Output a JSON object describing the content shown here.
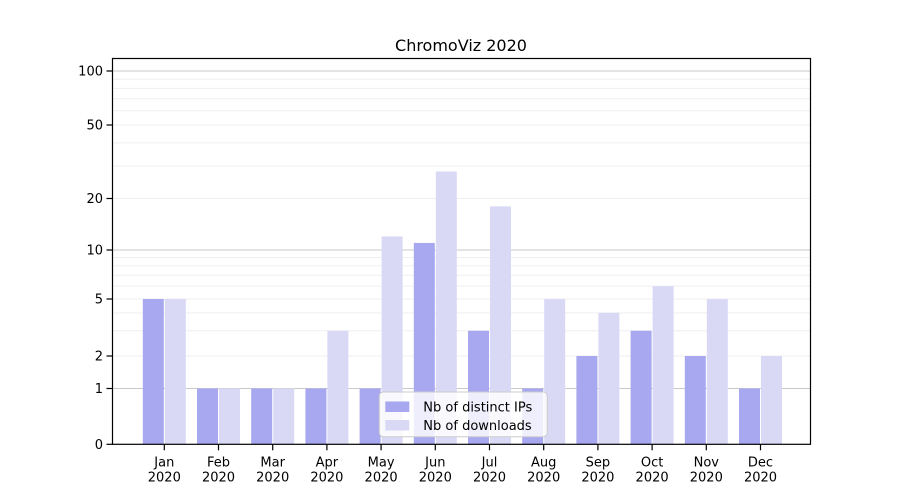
{
  "chart_data": {
    "type": "bar",
    "title": "ChromoViz 2020",
    "xlabel": "",
    "ylabel": "",
    "categories": [
      "Jan 2020",
      "Feb 2020",
      "Mar 2020",
      "Apr 2020",
      "May 2020",
      "Jun 2020",
      "Jul 2020",
      "Aug 2020",
      "Sep 2020",
      "Oct 2020",
      "Nov 2020",
      "Dec 2020"
    ],
    "series": [
      {
        "name": "Nb of distinct IPs",
        "color": "#a8a8f0",
        "values": [
          5,
          1,
          1,
          1,
          1,
          11,
          3,
          1,
          2,
          3,
          2,
          1
        ]
      },
      {
        "name": "Nb of downloads",
        "color": "#d9d9f6",
        "values": [
          5,
          1,
          1,
          3,
          12,
          28,
          18,
          5,
          4,
          6,
          5,
          2
        ]
      }
    ],
    "y_axis": {
      "scale": "symlog-like (linear 0-1, log above)",
      "tick_labels": [
        0,
        1,
        2,
        5,
        10,
        20,
        50,
        100
      ],
      "major_gridlines": [
        1,
        10,
        100
      ],
      "minor_gridlines": [
        2,
        3,
        4,
        5,
        6,
        7,
        8,
        9,
        20,
        30,
        40,
        50,
        60,
        70,
        80,
        90
      ],
      "range": [
        0,
        115
      ]
    },
    "legend": {
      "location": "lower center",
      "labels": [
        "Nb of distinct IPs",
        "Nb of downloads"
      ]
    },
    "grid": true
  },
  "style": {
    "series1_color": "#a8a8f0",
    "series2_color": "#d9d9f6",
    "major_grid_color": "#c9c9c9",
    "minor_grid_color": "#efefef",
    "axis_color": "#000000",
    "text_color": "#000000",
    "legend_border_color": "#cccccc",
    "legend_background": "rgba(255,255,255,0.8)"
  }
}
